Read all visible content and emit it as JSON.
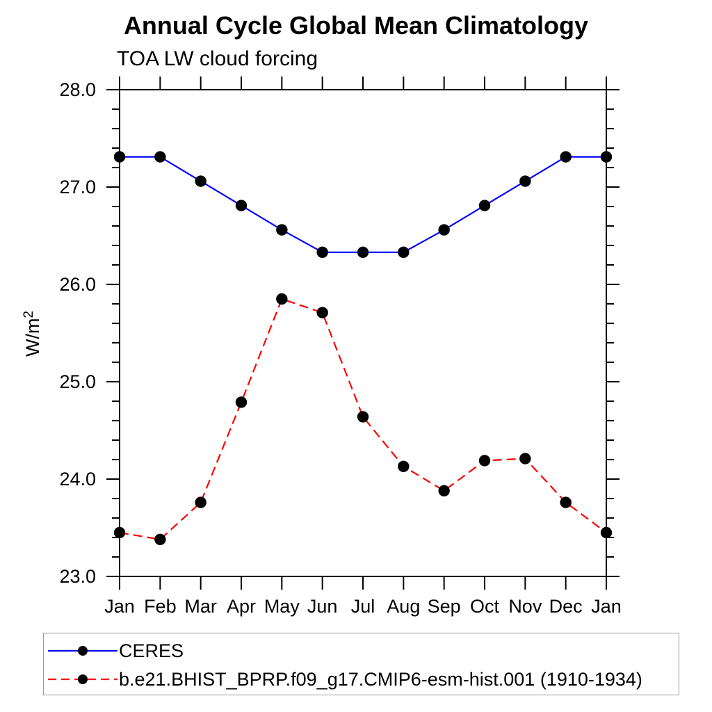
{
  "chart_data": {
    "type": "line",
    "title": "Annual Cycle Global Mean Climatology",
    "subtitle": "TOA LW cloud forcing",
    "ylabel": "W/m²",
    "xlabel": "",
    "categories": [
      "Jan",
      "Feb",
      "Mar",
      "Apr",
      "May",
      "Jun",
      "Jul",
      "Aug",
      "Sep",
      "Oct",
      "Nov",
      "Dec",
      "Jan"
    ],
    "ylim": [
      23.0,
      28.0
    ],
    "yticks_major": [
      23.0,
      24.0,
      25.0,
      26.0,
      27.0,
      28.0
    ],
    "ytick_labels": [
      "23.0",
      "24.0",
      "25.0",
      "26.0",
      "27.0",
      "28.0"
    ],
    "ytick_minor_step": 0.2,
    "grid": false,
    "legend_position": "bottom box, below plot",
    "marker": "filled-circle",
    "marker_color": "#000000",
    "series": [
      {
        "name": "CERES",
        "color": "#0000ff",
        "line_style": "solid",
        "values": [
          27.31,
          27.31,
          27.06,
          26.81,
          26.56,
          26.33,
          26.33,
          26.33,
          26.56,
          26.81,
          27.06,
          27.31,
          27.31
        ]
      },
      {
        "name": "b.e21.BHIST_BPRP.f09_g17.CMIP6-esm-hist.001 (1910-1934)",
        "color": "#ff0000",
        "line_style": "dashed",
        "values": [
          23.45,
          23.38,
          23.76,
          24.79,
          25.85,
          25.71,
          24.64,
          24.13,
          23.88,
          24.19,
          24.21,
          23.76,
          23.45
        ]
      }
    ]
  }
}
